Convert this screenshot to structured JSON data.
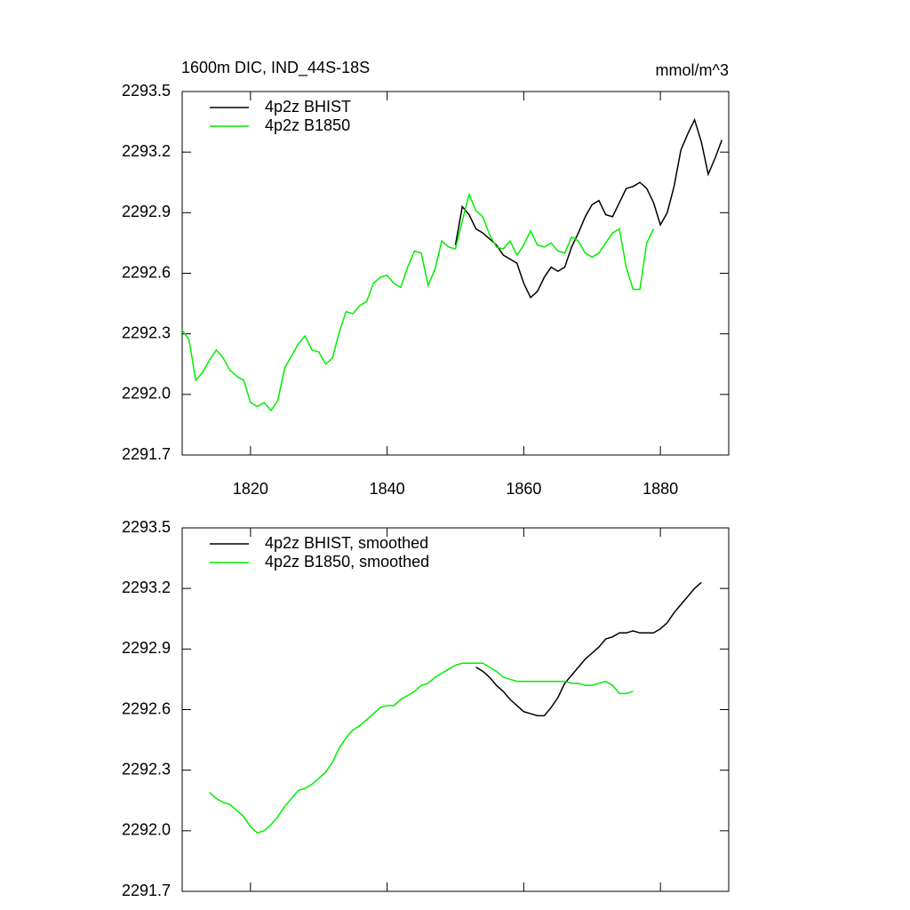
{
  "chart_data": [
    {
      "type": "line",
      "title": "1600m DIC, IND_44S-18S",
      "units_label": "mmol/m^3",
      "x": [
        1810,
        1811,
        1812,
        1813,
        1814,
        1815,
        1816,
        1817,
        1818,
        1819,
        1820,
        1821,
        1822,
        1823,
        1824,
        1825,
        1826,
        1827,
        1828,
        1829,
        1830,
        1831,
        1832,
        1833,
        1834,
        1835,
        1836,
        1837,
        1838,
        1839,
        1840,
        1841,
        1842,
        1843,
        1844,
        1845,
        1846,
        1847,
        1848,
        1849,
        1850,
        1851,
        1852,
        1853,
        1854,
        1855,
        1856,
        1857,
        1858,
        1859,
        1860,
        1861,
        1862,
        1863,
        1864,
        1865,
        1866,
        1867,
        1868,
        1869,
        1870,
        1871,
        1872,
        1873,
        1874,
        1875,
        1876,
        1877,
        1878,
        1879,
        1880,
        1881,
        1882,
        1883,
        1884,
        1885,
        1886,
        1887,
        1888,
        1889
      ],
      "series": [
        {
          "name": "4p2z BHIST",
          "color": "#000000",
          "values": [
            null,
            null,
            null,
            null,
            null,
            null,
            null,
            null,
            null,
            null,
            null,
            null,
            null,
            null,
            null,
            null,
            null,
            null,
            null,
            null,
            null,
            null,
            null,
            null,
            null,
            null,
            null,
            null,
            null,
            null,
            null,
            null,
            null,
            null,
            null,
            null,
            null,
            null,
            null,
            null,
            2292.74,
            2292.93,
            2292.89,
            2292.82,
            2292.8,
            2292.77,
            2292.74,
            2292.69,
            2292.67,
            2292.65,
            2292.55,
            2292.48,
            2292.51,
            2292.58,
            2292.63,
            2292.61,
            2292.63,
            2292.73,
            2292.8,
            2292.88,
            2292.94,
            2292.96,
            2292.89,
            2292.88,
            2292.95,
            2293.02,
            2293.03,
            2293.05,
            2293.02,
            2292.95,
            2292.84,
            2292.9,
            2293.03,
            2293.21,
            2293.29,
            2293.36,
            2293.25,
            2293.09,
            2293.17,
            2293.26
          ]
        },
        {
          "name": "4p2z B1850",
          "color": "#00ee00",
          "values": [
            2292.32,
            2292.27,
            2292.07,
            2292.11,
            2292.17,
            2292.22,
            2292.18,
            2292.12,
            2292.09,
            2292.07,
            2291.96,
            2291.94,
            2291.96,
            2291.92,
            2291.97,
            2292.13,
            2292.19,
            2292.25,
            2292.29,
            2292.22,
            2292.21,
            2292.15,
            2292.18,
            2292.31,
            2292.41,
            2292.4,
            2292.44,
            2292.46,
            2292.55,
            2292.58,
            2292.59,
            2292.55,
            2292.53,
            2292.63,
            2292.71,
            2292.7,
            2292.54,
            2292.62,
            2292.76,
            2292.73,
            2292.72,
            2292.86,
            2292.99,
            2292.91,
            2292.88,
            2292.79,
            2292.73,
            2292.72,
            2292.76,
            2292.69,
            2292.74,
            2292.81,
            2292.74,
            2292.73,
            2292.75,
            2292.71,
            2292.7,
            2292.78,
            2292.76,
            2292.7,
            2292.68,
            2292.7,
            2292.75,
            2292.8,
            2292.82,
            2292.63,
            2292.52,
            2292.52,
            2292.75,
            2292.82,
            null,
            null,
            null,
            null,
            null,
            null,
            null,
            null,
            null,
            null
          ]
        }
      ],
      "xlim": [
        1810,
        1890
      ],
      "xticks": [
        1820,
        1840,
        1860,
        1880
      ],
      "ylim": [
        2291.7,
        2293.5
      ],
      "yticks": [
        2291.7,
        {
          "value": 2292,
          "label": "2292.0"
        },
        2292.3,
        2292.6,
        2292.9,
        2293.2,
        2293.5
      ],
      "legend": "upper-left"
    },
    {
      "type": "line",
      "x": [
        1814,
        1815,
        1816,
        1817,
        1818,
        1819,
        1820,
        1821,
        1822,
        1823,
        1824,
        1825,
        1826,
        1827,
        1828,
        1829,
        1830,
        1831,
        1832,
        1833,
        1834,
        1835,
        1836,
        1837,
        1838,
        1839,
        1840,
        1841,
        1842,
        1843,
        1844,
        1845,
        1846,
        1847,
        1848,
        1849,
        1850,
        1851,
        1852,
        1853,
        1854,
        1855,
        1856,
        1857,
        1858,
        1859,
        1860,
        1861,
        1862,
        1863,
        1864,
        1865,
        1866,
        1867,
        1868,
        1869,
        1870,
        1871,
        1872,
        1873,
        1874,
        1875,
        1876,
        1877,
        1878,
        1879,
        1880,
        1881,
        1882,
        1883,
        1884,
        1885,
        1886
      ],
      "series": [
        {
          "name": "4p2z BHIST, smoothed",
          "color": "#000000",
          "values": [
            null,
            null,
            null,
            null,
            null,
            null,
            null,
            null,
            null,
            null,
            null,
            null,
            null,
            null,
            null,
            null,
            null,
            null,
            null,
            null,
            null,
            null,
            null,
            null,
            null,
            null,
            null,
            null,
            null,
            null,
            null,
            null,
            null,
            null,
            null,
            null,
            null,
            null,
            null,
            2292.81,
            2292.79,
            2292.76,
            2292.72,
            2292.69,
            2292.65,
            2292.62,
            2292.59,
            2292.58,
            2292.57,
            2292.57,
            2292.61,
            2292.66,
            2292.73,
            2292.77,
            2292.81,
            2292.85,
            2292.88,
            2292.91,
            2292.95,
            2292.96,
            2292.98,
            2292.98,
            2292.99,
            2292.98,
            2292.98,
            2292.98,
            2293.0,
            2293.03,
            2293.08,
            2293.12,
            2293.16,
            2293.2,
            2293.23
          ]
        },
        {
          "name": "4p2z B1850, smoothed",
          "color": "#00ee00",
          "values": [
            2292.19,
            2292.16,
            2292.14,
            2292.13,
            2292.1,
            2292.07,
            2292.02,
            2291.99,
            2292.0,
            2292.03,
            2292.07,
            2292.12,
            2292.16,
            2292.2,
            2292.21,
            2292.23,
            2292.26,
            2292.29,
            2292.34,
            2292.41,
            2292.46,
            2292.5,
            2292.52,
            2292.55,
            2292.58,
            2292.61,
            2292.62,
            2292.62,
            2292.65,
            2292.67,
            2292.69,
            2292.72,
            2292.73,
            2292.76,
            2292.78,
            2292.8,
            2292.82,
            2292.83,
            2292.83,
            2292.83,
            2292.83,
            2292.81,
            2292.79,
            2292.76,
            2292.75,
            2292.74,
            2292.74,
            2292.74,
            2292.74,
            2292.74,
            2292.74,
            2292.74,
            2292.74,
            2292.73,
            2292.73,
            2292.72,
            2292.72,
            2292.73,
            2292.74,
            2292.72,
            2292.68,
            2292.68,
            2292.69,
            null,
            null,
            null,
            null,
            null,
            null,
            null,
            null,
            null,
            null
          ]
        }
      ],
      "xlim": [
        1810,
        1890
      ],
      "xticks": [
        1820,
        1840,
        1860,
        1880
      ],
      "ylim": [
        2291.7,
        2293.5
      ],
      "yticks": [
        2291.7,
        {
          "value": 2292,
          "label": "2292.0"
        },
        2292.3,
        2292.6,
        2292.9,
        2293.2,
        2293.5
      ],
      "legend": "upper-left"
    }
  ]
}
